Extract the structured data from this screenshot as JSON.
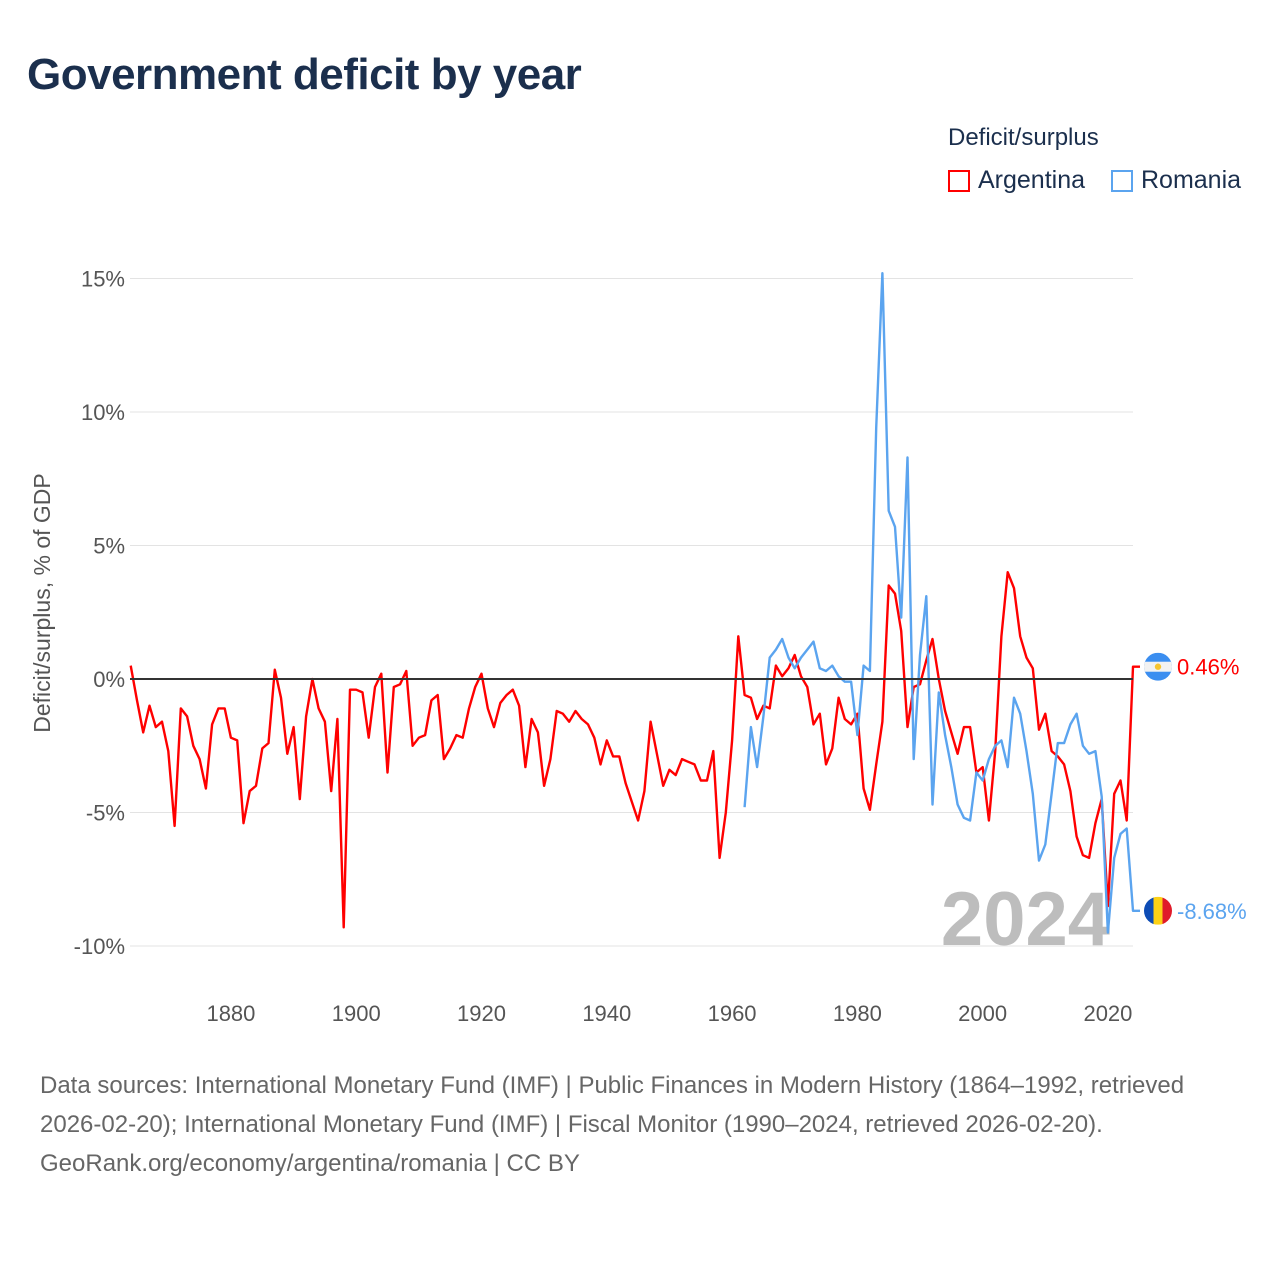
{
  "title": "Government deficit by year",
  "legend": {
    "title": "Deficit/surplus",
    "items": [
      {
        "label": "Argentina",
        "color": "#ff0000"
      },
      {
        "label": "Romania",
        "color": "#5ba4ef"
      }
    ]
  },
  "current_year_label": "2024",
  "chart_data": {
    "type": "line",
    "title": "Government deficit by year",
    "xlabel": "",
    "ylabel": "Deficit/surplus, % of GDP",
    "xlim": [
      1864,
      2024
    ],
    "ylim": [
      -11,
      15.5
    ],
    "x_ticks": [
      1880,
      1900,
      1920,
      1940,
      1960,
      1980,
      2000,
      2020
    ],
    "y_ticks": [
      {
        "value": 15,
        "label": "15%"
      },
      {
        "value": 10,
        "label": "10%"
      },
      {
        "value": 5,
        "label": "5%"
      },
      {
        "value": 0,
        "label": "0%"
      },
      {
        "value": -5,
        "label": "-5%"
      },
      {
        "value": -10,
        "label": "-10%"
      }
    ],
    "grid": true,
    "legend_position": "top-right",
    "series": [
      {
        "name": "Argentina",
        "color": "#ff0000",
        "start_year": 1864,
        "end_label": "0.46%",
        "values": [
          0.5,
          -0.8,
          -2.0,
          -1.0,
          -1.8,
          -1.6,
          -2.7,
          -5.5,
          -1.1,
          -1.4,
          -2.5,
          -3.0,
          -4.1,
          -1.7,
          -1.1,
          -1.1,
          -2.2,
          -2.3,
          -5.4,
          -4.2,
          -4.0,
          -2.6,
          -2.4,
          0.35,
          -0.7,
          -2.8,
          -1.8,
          -4.5,
          -1.4,
          0.0,
          -1.1,
          -1.6,
          -4.2,
          -1.5,
          -9.3,
          -0.4,
          -0.4,
          -0.5,
          -2.2,
          -0.3,
          0.2,
          -3.5,
          -0.3,
          -0.2,
          0.3,
          -2.5,
          -2.2,
          -2.1,
          -0.8,
          -0.6,
          -3.0,
          -2.6,
          -2.1,
          -2.2,
          -1.1,
          -0.3,
          0.2,
          -1.1,
          -1.8,
          -0.9,
          -0.6,
          -0.4,
          -1.0,
          -3.3,
          -1.5,
          -2.0,
          -4.0,
          -3.0,
          -1.2,
          -1.3,
          -1.6,
          -1.2,
          -1.5,
          -1.7,
          -2.2,
          -3.2,
          -2.3,
          -2.9,
          -2.9,
          -3.9,
          -4.6,
          -5.3,
          -4.2,
          -1.6,
          -2.8,
          -4.0,
          -3.4,
          -3.6,
          -3.0,
          -3.1,
          -3.2,
          -3.8,
          -3.8,
          -2.7,
          -6.7,
          -5.0,
          -2.3,
          1.6,
          -0.6,
          -0.7,
          -1.5,
          -1.0,
          -1.1,
          0.5,
          0.1,
          0.4,
          0.9,
          0.1,
          -0.3,
          -1.7,
          -1.3,
          -3.2,
          -2.6,
          -0.7,
          -1.5,
          -1.7,
          -1.3,
          -4.1,
          -4.9,
          -3.2,
          -1.6,
          3.5,
          3.2,
          1.8,
          -1.8,
          -0.3,
          -0.2,
          0.7,
          1.5,
          0.0,
          -1.2,
          -2.0,
          -2.8,
          -1.8,
          -1.8,
          -3.5,
          -3.3,
          -5.3,
          -2.7,
          1.6,
          4.0,
          3.4,
          1.6,
          0.8,
          0.4,
          -1.9,
          -1.3,
          -2.7,
          -2.9,
          -3.2,
          -4.2,
          -5.9,
          -6.6,
          -6.7,
          -5.4,
          -4.5,
          -8.5,
          -4.3,
          -3.8,
          -5.3,
          0.46
        ]
      },
      {
        "name": "Romania",
        "color": "#5ba4ef",
        "start_year": 1962,
        "end_label": "-8.68%",
        "values": [
          -4.8,
          -1.8,
          -3.3,
          -1.4,
          0.8,
          1.1,
          1.5,
          0.8,
          0.4,
          0.8,
          1.1,
          1.4,
          0.4,
          0.3,
          0.5,
          0.1,
          -0.1,
          -0.1,
          -2.1,
          0.5,
          0.3,
          9.4,
          15.2,
          6.3,
          5.7,
          2.3,
          8.3,
          -3.0,
          0.9,
          3.1,
          -4.7,
          -0.5,
          -2.1,
          -3.3,
          -4.7,
          -5.2,
          -5.3,
          -3.5,
          -3.8,
          -3.0,
          -2.5,
          -2.3,
          -3.3,
          -0.7,
          -1.3,
          -2.7,
          -4.3,
          -6.8,
          -6.2,
          -4.3,
          -2.4,
          -2.4,
          -1.7,
          -1.3,
          -2.5,
          -2.8,
          -2.7,
          -4.4,
          -9.5,
          -6.7,
          -5.8,
          -5.6,
          -8.68
        ]
      }
    ]
  },
  "footer": {
    "sources": "Data sources: International Monetary Fund (IMF) | Public Finances in Modern History (1864–1992, retrieved 2026-02-20); International Monetary Fund (IMF) | Fiscal Monitor (1990–2024, retrieved 2026-02-20).",
    "credit": "GeoRank.org/economy/argentina/romania | CC BY"
  }
}
